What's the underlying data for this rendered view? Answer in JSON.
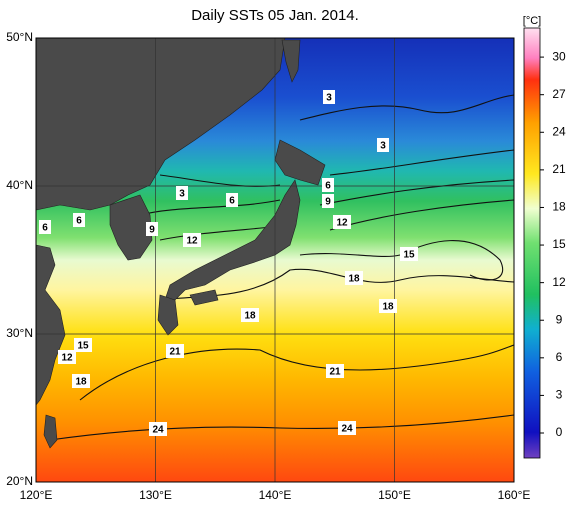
{
  "title": "Daily SSTs 05 Jan. 2014.",
  "latitude_labels": [
    "50°N",
    "40°N",
    "30°N",
    "20°N"
  ],
  "longitude_labels": [
    "120°E",
    "130°E",
    "140°E",
    "150°E",
    "160°E"
  ],
  "colorbar": {
    "unit": "[°C]",
    "ticks": [
      0,
      3,
      6,
      9,
      12,
      15,
      18,
      21,
      24,
      27,
      30
    ]
  },
  "contour_labels": [
    "3",
    "3",
    "3",
    "6",
    "6",
    "6",
    "6",
    "9",
    "9",
    "12",
    "12",
    "15",
    "15",
    "12",
    "18",
    "18",
    "18",
    "18",
    "21",
    "21",
    "24",
    "24"
  ]
}
